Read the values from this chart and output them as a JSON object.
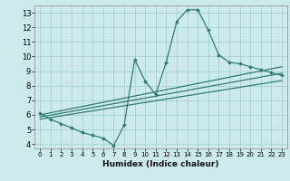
{
  "xlabel": "Humidex (Indice chaleur)",
  "ylabel": "",
  "bg_color": "#cceaea",
  "grid_color": "#aad4d4",
  "line_color": "#2e7d6e",
  "xlim": [
    -0.5,
    23.5
  ],
  "ylim": [
    3.7,
    13.5
  ],
  "xticks": [
    0,
    1,
    2,
    3,
    4,
    5,
    6,
    7,
    8,
    9,
    10,
    11,
    12,
    13,
    14,
    15,
    16,
    17,
    18,
    19,
    20,
    21,
    22,
    23
  ],
  "yticks": [
    4,
    5,
    6,
    7,
    8,
    9,
    10,
    11,
    12,
    13
  ],
  "main_x": [
    0,
    1,
    2,
    3,
    4,
    5,
    6,
    7,
    8,
    9,
    10,
    11,
    12,
    13,
    14,
    15,
    16,
    17,
    18,
    19,
    20,
    21,
    22,
    23
  ],
  "main_y": [
    6.1,
    5.7,
    5.4,
    5.1,
    4.8,
    4.6,
    4.4,
    3.9,
    5.3,
    9.8,
    8.3,
    7.4,
    9.6,
    12.4,
    13.2,
    13.2,
    11.8,
    10.1,
    9.6,
    9.5,
    9.3,
    9.1,
    8.9,
    8.7
  ],
  "line2_x": [
    0,
    23
  ],
  "line2_y": [
    6.0,
    9.3
  ],
  "line3_x": [
    0,
    23
  ],
  "line3_y": [
    5.85,
    8.85
  ],
  "line4_x": [
    0,
    23
  ],
  "line4_y": [
    5.7,
    8.35
  ]
}
